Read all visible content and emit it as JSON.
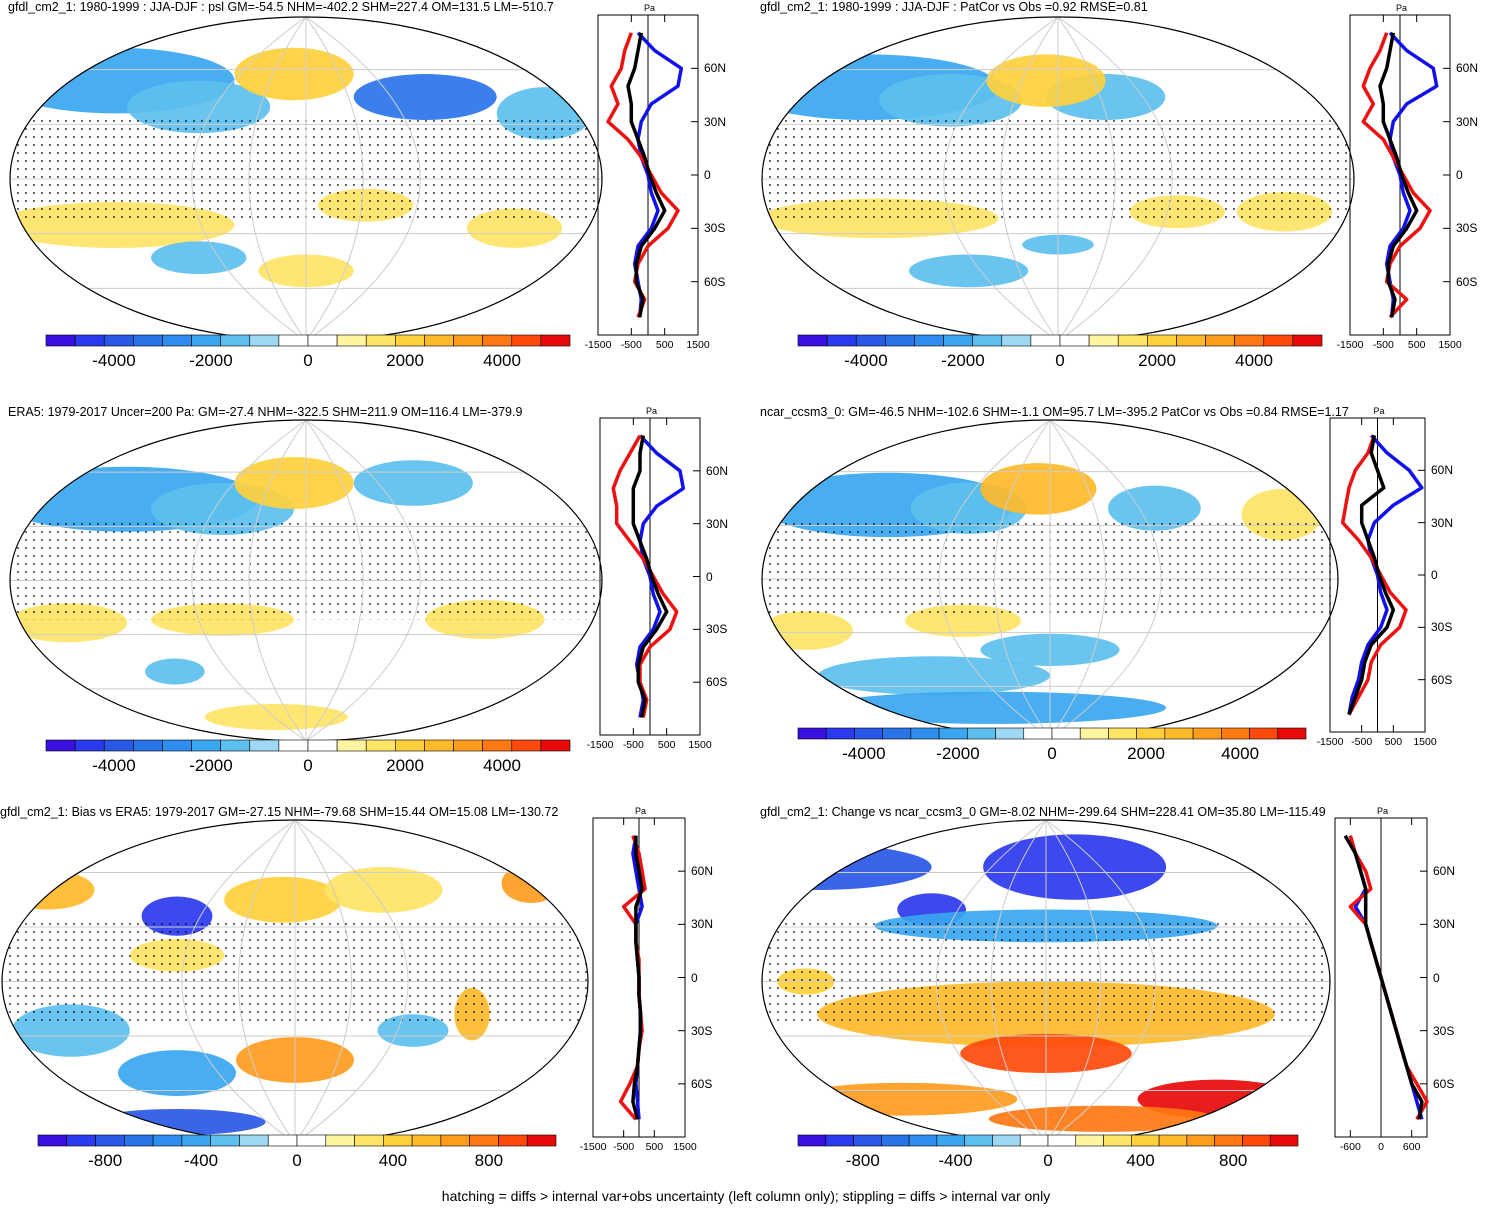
{
  "caption": "hatching = diffs > internal var+obs uncertainty (left column only); stippling = diffs > internal var only",
  "profile_unit": "Pa",
  "colors": {
    "blue_line": "#1111ee",
    "red_line": "#ee1111",
    "black_line": "#000000",
    "palette": [
      "#3a10e0",
      "#2a3aee",
      "#2a58e6",
      "#2a74ea",
      "#2e8ef0",
      "#3aa6f0",
      "#5cc0ee",
      "#9ed8f4",
      "#ffffff",
      "#ffffff",
      "#fff4a0",
      "#ffe466",
      "#ffd03c",
      "#ffba2a",
      "#ff9c1e",
      "#ff7812",
      "#ff4a0c",
      "#e80a0a"
    ]
  },
  "chart_data": [
    {
      "id": "p1",
      "type": "map",
      "title": "gfdl_cm2_1: 1980-1999 : JJA-DJF : psl GM=-54.5 NHM=-402.2 SHM=227.4 OM=131.5 LM=-510.7",
      "colorbar": {
        "ticks": [
          "-4000",
          "-2000",
          "0",
          "2000",
          "4000"
        ],
        "range": [
          -5400,
          5400
        ]
      },
      "profile": {
        "xticks": [
          "-1500",
          "-500",
          "500",
          "1500"
        ],
        "xrange": [
          -1500,
          1500
        ],
        "ylabels": [
          "60N",
          "30N",
          "0",
          "30S",
          "60S"
        ]
      },
      "series": [
        {
          "name": "blue",
          "lat": [
            80,
            70,
            60,
            50,
            40,
            30,
            20,
            10,
            0,
            -10,
            -20,
            -30,
            -40,
            -50,
            -60,
            -70,
            -80
          ],
          "values": [
            -300,
            200,
            1000,
            900,
            100,
            -200,
            -300,
            -200,
            0,
            100,
            300,
            100,
            -300,
            -400,
            -300,
            -200,
            -250
          ]
        },
        {
          "name": "red",
          "lat": [
            80,
            70,
            60,
            50,
            40,
            30,
            20,
            10,
            0,
            -10,
            -20,
            -30,
            -40,
            -50,
            -60,
            -70,
            -80
          ],
          "values": [
            -500,
            -700,
            -800,
            -1100,
            -900,
            -1200,
            -600,
            -200,
            100,
            400,
            900,
            600,
            0,
            -300,
            -400,
            -100,
            -300
          ]
        },
        {
          "name": "black",
          "lat": [
            80,
            70,
            60,
            50,
            40,
            30,
            20,
            10,
            0,
            -10,
            -20,
            -30,
            -40,
            -50,
            -60,
            -70,
            -80
          ],
          "values": [
            -200,
            -300,
            -400,
            -600,
            -500,
            -500,
            -300,
            -100,
            50,
            250,
            500,
            200,
            -200,
            -350,
            -350,
            -150,
            -250
          ]
        }
      ]
    },
    {
      "id": "p2",
      "type": "map",
      "title": "gfdl_cm2_1: 1980-1999 : JJA-DJF : PatCor vs Obs =0.92 RMSE=0.81",
      "colorbar": {
        "ticks": [
          "-4000",
          "-2000",
          "0",
          "2000",
          "4000"
        ],
        "range": [
          -5400,
          5400
        ]
      },
      "profile": {
        "xticks": [
          "-1500",
          "-500",
          "500",
          "1500"
        ],
        "xrange": [
          -1500,
          1500
        ],
        "ylabels": [
          "60N",
          "30N",
          "0",
          "30S",
          "60S"
        ]
      },
      "series": [
        {
          "name": "blue",
          "lat": [
            80,
            70,
            60,
            50,
            40,
            30,
            20,
            10,
            0,
            -10,
            -20,
            -30,
            -40,
            -50,
            -60,
            -70,
            -80
          ],
          "values": [
            -300,
            200,
            1000,
            1100,
            200,
            -200,
            -300,
            -200,
            0,
            100,
            300,
            100,
            -300,
            -400,
            -300,
            -200,
            -250
          ]
        },
        {
          "name": "red",
          "lat": [
            80,
            70,
            60,
            50,
            40,
            30,
            20,
            10,
            0,
            -10,
            -20,
            -30,
            -40,
            -50,
            -60,
            -70,
            -80
          ],
          "values": [
            -400,
            -600,
            -900,
            -1100,
            -800,
            -1100,
            -500,
            -200,
            100,
            400,
            900,
            600,
            0,
            -300,
            -400,
            200,
            -300
          ]
        },
        {
          "name": "black",
          "lat": [
            80,
            70,
            60,
            50,
            40,
            30,
            20,
            10,
            0,
            -10,
            -20,
            -30,
            -40,
            -50,
            -60,
            -70,
            -80
          ],
          "values": [
            -200,
            -300,
            -400,
            -600,
            -500,
            -500,
            -300,
            -100,
            50,
            250,
            500,
            200,
            -200,
            -350,
            -350,
            -150,
            -250
          ]
        }
      ]
    },
    {
      "id": "p3",
      "type": "map",
      "title": "ERA5: 1979-2017 Uncer=200 Pa: GM=-27.4 NHM=-322.5 SHM=211.9 OM=116.4 LM=-379.9",
      "colorbar": {
        "ticks": [
          "-4000",
          "-2000",
          "0",
          "2000",
          "4000"
        ],
        "range": [
          -5400,
          5400
        ]
      },
      "profile": {
        "xticks": [
          "-1500",
          "-500",
          "500",
          "1500"
        ],
        "xrange": [
          -1500,
          1500
        ],
        "ylabels": [
          "60N",
          "30N",
          "0",
          "30S",
          "60S"
        ]
      },
      "series": [
        {
          "name": "blue",
          "lat": [
            80,
            70,
            60,
            50,
            40,
            30,
            20,
            10,
            0,
            -10,
            -20,
            -30,
            -40,
            -50,
            -60,
            -70,
            -80
          ],
          "values": [
            -300,
            200,
            900,
            1000,
            200,
            -200,
            -300,
            -200,
            0,
            100,
            300,
            100,
            -300,
            -400,
            -300,
            -200,
            -300
          ]
        },
        {
          "name": "red",
          "lat": [
            80,
            70,
            60,
            50,
            40,
            30,
            20,
            10,
            0,
            -10,
            -20,
            -30,
            -40,
            -50,
            -60,
            -70,
            -80
          ],
          "values": [
            -300,
            -600,
            -900,
            -1100,
            -1000,
            -1000,
            -600,
            -200,
            100,
            400,
            800,
            600,
            0,
            -300,
            -300,
            -100,
            -200
          ]
        },
        {
          "name": "black",
          "lat": [
            80,
            70,
            60,
            50,
            40,
            30,
            20,
            10,
            0,
            -10,
            -20,
            -30,
            -40,
            -50,
            -60,
            -70,
            -80
          ],
          "values": [
            -200,
            -300,
            -300,
            -500,
            -500,
            -500,
            -300,
            -100,
            50,
            250,
            500,
            200,
            -200,
            -350,
            -350,
            -150,
            -250
          ]
        }
      ]
    },
    {
      "id": "p4",
      "type": "map",
      "title": "ncar_ccsm3_0: GM=-46.5 NHM=-102.6 SHM=-1.1 OM=95.7 LM=-395.2 PatCor vs Obs =0.84 RMSE=1.17",
      "colorbar": {
        "ticks": [
          "-4000",
          "-2000",
          "0",
          "2000",
          "4000"
        ],
        "range": [
          -5400,
          5400
        ]
      },
      "profile": {
        "xticks": [
          "-1500",
          "-500",
          "500",
          "1500"
        ],
        "xrange": [
          -1500,
          1500
        ],
        "ylabels": [
          "60N",
          "30N",
          "0",
          "30S",
          "60S"
        ]
      },
      "series": [
        {
          "name": "blue",
          "lat": [
            80,
            70,
            60,
            50,
            40,
            30,
            20,
            10,
            0,
            -10,
            -20,
            -30,
            -40,
            -50,
            -60,
            -70,
            -80
          ],
          "values": [
            -200,
            300,
            1000,
            1400,
            500,
            -100,
            -300,
            -200,
            0,
            100,
            300,
            100,
            -300,
            -500,
            -600,
            -800,
            -900
          ]
        },
        {
          "name": "red",
          "lat": [
            80,
            70,
            60,
            50,
            40,
            30,
            20,
            10,
            0,
            -10,
            -20,
            -30,
            -40,
            -50,
            -60,
            -70,
            -80
          ],
          "values": [
            -100,
            -300,
            -700,
            -900,
            -1000,
            -1100,
            -600,
            -200,
            100,
            400,
            900,
            700,
            100,
            -200,
            -300,
            -600,
            -900
          ]
        },
        {
          "name": "black",
          "lat": [
            80,
            70,
            60,
            50,
            40,
            30,
            20,
            10,
            0,
            -10,
            -20,
            -30,
            -40,
            -50,
            -60,
            -70,
            -80
          ],
          "values": [
            -100,
            -200,
            0,
            200,
            -500,
            -500,
            -300,
            -100,
            50,
            250,
            500,
            300,
            -200,
            -400,
            -500,
            -700,
            -900
          ]
        }
      ]
    },
    {
      "id": "p5",
      "type": "map",
      "title": "gfdl_cm2_1: Bias vs ERA5: 1979-2017 GM=-27.15 NHM=-79.68 SHM=15.44 OM=15.08 LM=-130.72",
      "colorbar": {
        "ticks": [
          "-800",
          "-400",
          "0",
          "400",
          "800"
        ],
        "range": [
          -1080,
          1080
        ]
      },
      "profile": {
        "xticks": [
          "-1500",
          "-500",
          "500",
          "1500"
        ],
        "xrange": [
          -1500,
          1500
        ],
        "ylabels": [
          "60N",
          "30N",
          "0",
          "30S",
          "60S"
        ]
      },
      "series": [
        {
          "name": "blue",
          "lat": [
            80,
            70,
            60,
            50,
            40,
            30,
            20,
            10,
            0,
            -10,
            -20,
            -30,
            -40,
            -50,
            -60,
            -70,
            -80
          ],
          "values": [
            -100,
            -200,
            -100,
            0,
            100,
            -100,
            -100,
            -50,
            0,
            0,
            50,
            50,
            0,
            -50,
            -100,
            -50,
            0
          ]
        },
        {
          "name": "red",
          "lat": [
            80,
            70,
            60,
            50,
            40,
            30,
            20,
            10,
            0,
            -10,
            -20,
            -30,
            -40,
            -50,
            -60,
            -70,
            -80
          ],
          "values": [
            -200,
            0,
            100,
            200,
            -500,
            -100,
            -100,
            0,
            0,
            0,
            50,
            100,
            0,
            -50,
            -300,
            -600,
            -100
          ]
        },
        {
          "name": "black",
          "lat": [
            80,
            70,
            60,
            50,
            40,
            30,
            20,
            10,
            0,
            -10,
            -20,
            -30,
            -40,
            -50,
            -60,
            -70,
            -80
          ],
          "values": [
            -100,
            -100,
            0,
            100,
            -100,
            -100,
            -100,
            -50,
            0,
            0,
            50,
            50,
            0,
            -50,
            -150,
            -200,
            -50
          ]
        }
      ]
    },
    {
      "id": "p6",
      "type": "map",
      "title": "gfdl_cm2_1: Change vs ncar_ccsm3_0 GM=-8.02 NHM=-299.64 SHM=228.41 OM=35.80 LM=-115.49",
      "colorbar": {
        "ticks": [
          "-800",
          "-400",
          "0",
          "400",
          "800"
        ],
        "range": [
          -1080,
          1080
        ]
      },
      "profile": {
        "xticks": [
          "-600",
          "0",
          "600"
        ],
        "xrange": [
          -900,
          900
        ],
        "ylabels": [
          "60N",
          "30N",
          "0",
          "30S",
          "60S"
        ]
      },
      "series": [
        {
          "name": "blue",
          "lat": [
            80,
            70,
            60,
            50,
            40,
            30,
            20,
            10,
            0,
            -10,
            -20,
            -30,
            -40,
            -50,
            -60,
            -70,
            -80
          ],
          "values": [
            -600,
            -500,
            -400,
            -300,
            -500,
            -300,
            -200,
            -100,
            0,
            100,
            200,
            300,
            400,
            500,
            600,
            700,
            800
          ]
        },
        {
          "name": "red",
          "lat": [
            80,
            70,
            60,
            50,
            40,
            30,
            20,
            10,
            0,
            -10,
            -20,
            -30,
            -40,
            -50,
            -60,
            -70,
            -80
          ],
          "values": [
            -600,
            -500,
            -300,
            -200,
            -600,
            -300,
            -200,
            -100,
            0,
            100,
            200,
            300,
            400,
            500,
            700,
            900,
            700
          ]
        },
        {
          "name": "black",
          "lat": [
            80,
            70,
            60,
            50,
            40,
            30,
            20,
            10,
            0,
            -10,
            -20,
            -30,
            -40,
            -50,
            -60,
            -70,
            -80
          ],
          "values": [
            -700,
            -500,
            -400,
            -300,
            -300,
            -300,
            -200,
            -100,
            0,
            100,
            200,
            300,
            400,
            500,
            600,
            800,
            750
          ]
        }
      ]
    }
  ]
}
